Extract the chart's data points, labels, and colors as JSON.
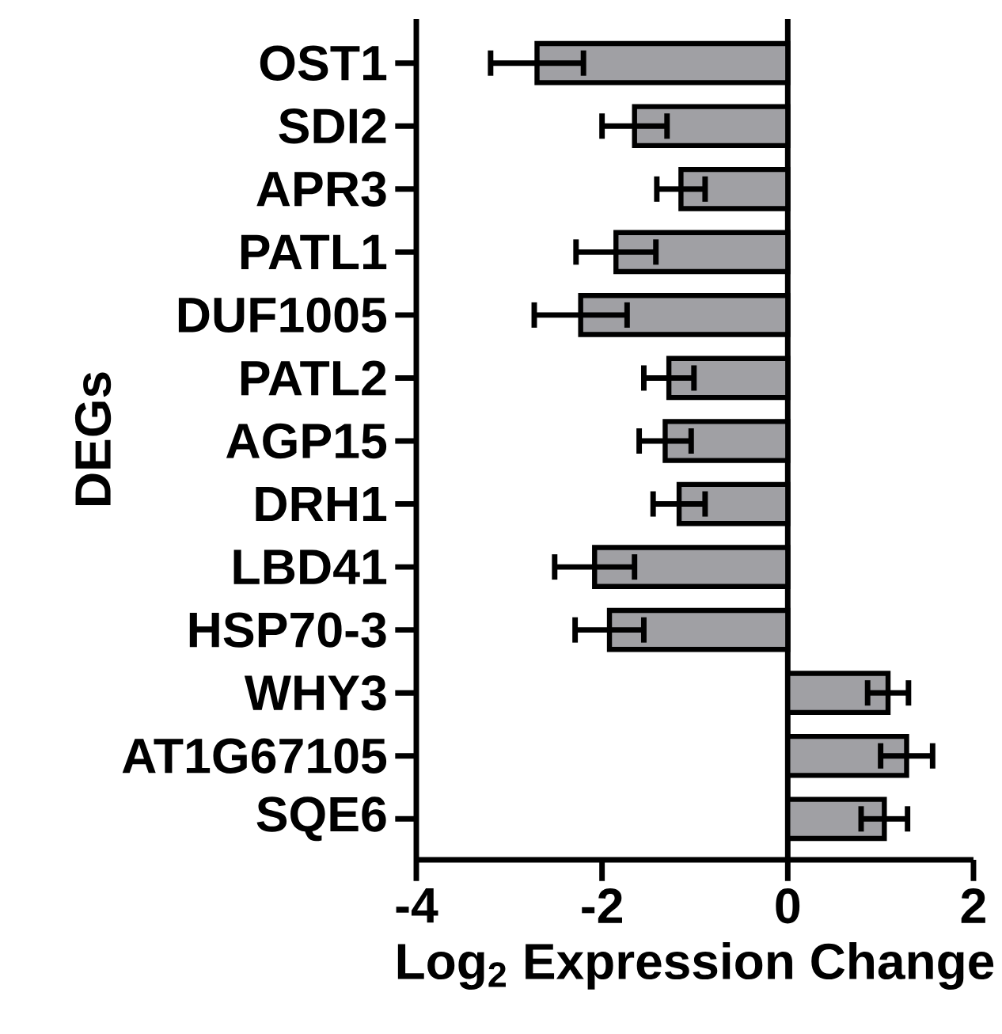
{
  "chart_data": {
    "type": "bar",
    "orientation": "horizontal",
    "xlabel": "Log$_{2}$ Expression Change",
    "ylabel": "DEGs",
    "categories": [
      "OST1",
      "SDI2",
      "APR3",
      "PATL1",
      "DUF1005",
      "PATL2",
      "AGP15",
      "DRH1",
      "LBD41",
      "HSP70-3",
      "WHY3",
      "AT1G67105",
      "SQE6"
    ],
    "values": [
      -2.7,
      -1.65,
      -1.15,
      -1.85,
      -2.23,
      -1.28,
      -1.32,
      -1.17,
      -2.08,
      -1.92,
      1.08,
      1.28,
      1.04
    ],
    "errors": [
      0.5,
      0.35,
      0.26,
      0.43,
      0.5,
      0.27,
      0.28,
      0.28,
      0.43,
      0.37,
      0.22,
      0.28,
      0.25
    ],
    "color": "#a0a0a4",
    "xlim": [
      -4,
      2
    ],
    "xticks": [
      -4,
      -2,
      0,
      2
    ],
    "ref_lines": [
      {
        "axis": "x",
        "value": 0
      }
    ]
  }
}
